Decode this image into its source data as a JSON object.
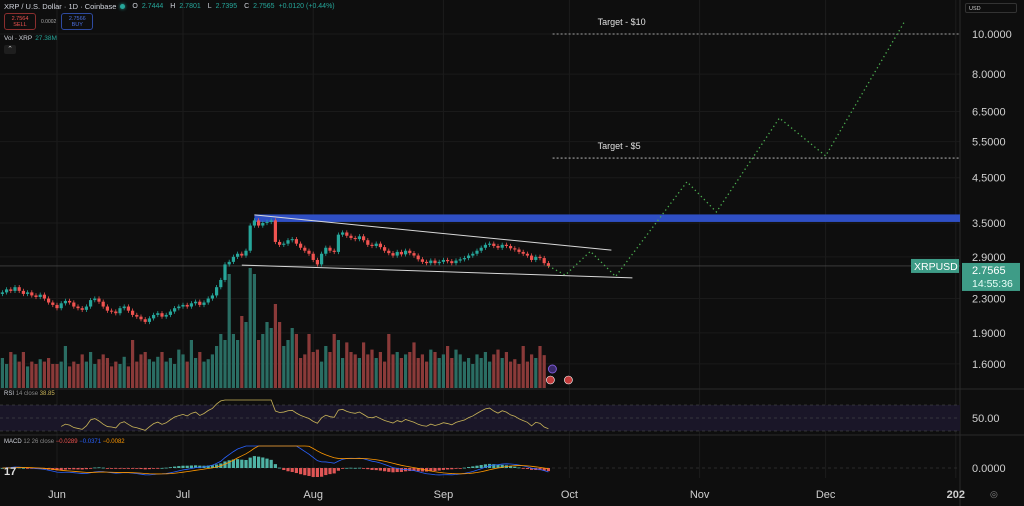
{
  "header": {
    "title": "XRP / U.S. Dollar · 1D · Coinbase",
    "ohlc": {
      "o_label": "O",
      "o": "2.7444",
      "h_label": "H",
      "h": "2.7801",
      "l_label": "L",
      "l": "2.7395",
      "c_label": "C",
      "c": "2.7565",
      "change": "+0.0120 (+0.44%)"
    },
    "sell_price": "2.7564",
    "sell_label": "SELL",
    "spread": "0.0002",
    "buy_price": "2.7566",
    "buy_label": "BUY",
    "volume_label": "Vol · XRP",
    "volume_value": "27.38M",
    "collapse_icon": "chevron-up-icon"
  },
  "currency_select": "USD",
  "colors": {
    "up": "#26a69a",
    "down": "#ef5350",
    "zone": "#2f4fc4",
    "projection": "#4caf50",
    "background": "#0e0e0e",
    "rsi": "#c9b458",
    "macd": "#2962ff",
    "signal": "#ff9800"
  },
  "chart_data": {
    "type": "candlestick",
    "symbol": "XRPUSD",
    "scale": "log",
    "start_date": "2025-05-19",
    "closes": [
      2.38,
      2.42,
      2.4,
      2.45,
      2.4,
      2.36,
      2.38,
      2.34,
      2.32,
      2.35,
      2.3,
      2.25,
      2.22,
      2.18,
      2.24,
      2.27,
      2.25,
      2.2,
      2.18,
      2.16,
      2.2,
      2.28,
      2.3,
      2.26,
      2.2,
      2.15,
      2.14,
      2.12,
      2.18,
      2.2,
      2.15,
      2.1,
      2.08,
      2.05,
      2.02,
      2.06,
      2.1,
      2.12,
      2.08,
      2.1,
      2.14,
      2.18,
      2.2,
      2.22,
      2.2,
      2.24,
      2.26,
      2.22,
      2.25,
      2.3,
      2.34,
      2.45,
      2.55,
      2.78,
      2.82,
      2.9,
      2.95,
      2.92,
      3.0,
      3.45,
      3.55,
      3.45,
      3.5,
      3.52,
      3.55,
      3.15,
      3.1,
      3.12,
      3.18,
      3.2,
      3.12,
      3.05,
      3.0,
      2.95,
      2.85,
      2.78,
      2.95,
      3.05,
      3.0,
      2.98,
      3.28,
      3.32,
      3.26,
      3.22,
      3.2,
      3.25,
      3.18,
      3.1,
      3.08,
      3.12,
      3.06,
      3.0,
      2.96,
      2.92,
      2.98,
      2.94,
      3.0,
      2.96,
      2.92,
      2.86,
      2.82,
      2.8,
      2.84,
      2.8,
      2.82,
      2.85,
      2.83,
      2.8,
      2.84,
      2.86,
      2.88,
      2.92,
      2.95,
      3.0,
      3.05,
      3.1,
      3.12,
      3.08,
      3.05,
      3.1,
      3.08,
      3.04,
      3.02,
      2.98,
      2.95,
      2.92,
      2.85,
      2.9,
      2.88,
      2.8,
      2.7565
    ],
    "volumes_m": [
      25,
      20,
      30,
      28,
      22,
      30,
      18,
      22,
      20,
      24,
      22,
      25,
      20,
      20,
      22,
      35,
      18,
      22,
      20,
      28,
      22,
      30,
      20,
      24,
      28,
      25,
      18,
      22,
      20,
      26,
      18,
      40,
      22,
      28,
      30,
      24,
      22,
      26,
      30,
      22,
      25,
      20,
      32,
      28,
      22,
      40,
      25,
      30,
      22,
      24,
      28,
      35,
      45,
      40,
      95,
      45,
      40,
      60,
      55,
      100,
      95,
      40,
      45,
      55,
      50,
      70,
      55,
      35,
      40,
      50,
      45,
      25,
      28,
      45,
      30,
      32,
      22,
      35,
      30,
      45,
      40,
      25,
      38,
      30,
      28,
      25,
      38,
      28,
      32,
      25,
      30,
      22,
      45,
      28,
      30,
      25,
      28,
      30,
      38,
      25,
      28,
      22,
      32,
      30,
      25,
      28,
      35,
      25,
      32,
      28,
      22,
      25,
      20,
      28,
      25,
      30,
      22,
      28,
      32,
      25,
      30,
      22,
      24,
      20,
      35,
      22,
      28,
      25,
      35,
      27.38
    ],
    "price_ticks": [
      "10.0000",
      "8.0000",
      "6.5000",
      "5.5000",
      "4.5000",
      "3.5000",
      "2.9000",
      "2.3000",
      "1.9000",
      "1.6000"
    ],
    "time_ticks": [
      {
        "label": "Jun",
        "date": "2025-06-01"
      },
      {
        "label": "Jul",
        "date": "2025-07-01"
      },
      {
        "label": "Aug",
        "date": "2025-08-01"
      },
      {
        "label": "Sep",
        "date": "2025-09-01"
      },
      {
        "label": "Oct",
        "date": "2025-10-01"
      },
      {
        "label": "Nov",
        "date": "2025-11-01"
      },
      {
        "label": "Dec",
        "date": "2025-12-01"
      },
      {
        "label": "202",
        "date": "2026-01-01"
      }
    ],
    "last_price": {
      "symbol": "XRPUSD",
      "price": "2.7565",
      "countdown": "14:55:36"
    },
    "resistance_zone": {
      "from_date": "2025-07-18",
      "low": 3.52,
      "high": 3.67
    },
    "trendlines": [
      {
        "name": "upper",
        "points": [
          [
            "2025-07-18",
            3.66
          ],
          [
            "2025-10-11",
            3.01
          ]
        ]
      },
      {
        "name": "lower",
        "points": [
          [
            "2025-07-15",
            2.77
          ],
          [
            "2025-10-16",
            2.58
          ]
        ]
      }
    ],
    "targets": [
      {
        "label": "Target - $10",
        "price": 10.0,
        "from_date": "2025-09-27"
      },
      {
        "label": "Target - $5",
        "price": 5.02,
        "from_date": "2025-09-27"
      }
    ],
    "projection": [
      [
        "2025-09-26",
        2.7565
      ],
      [
        "2025-09-30",
        2.62
      ],
      [
        "2025-10-06",
        2.99
      ],
      [
        "2025-10-12",
        2.6
      ],
      [
        "2025-10-29",
        4.4
      ],
      [
        "2025-11-05",
        3.72
      ],
      [
        "2025-11-20",
        6.27
      ],
      [
        "2025-12-01",
        5.08
      ],
      [
        "2025-12-20",
        10.8
      ]
    ],
    "rsi": {
      "label": "RSI",
      "params": "14 close",
      "value": "38.85",
      "tick": "50.00",
      "bands": [
        30,
        50,
        70
      ]
    },
    "macd": {
      "label": "MACD",
      "params": "12 26 close",
      "hist": "−0.0289",
      "macd": "−0.0371",
      "signal": "−0.0082",
      "tick": "0.0000"
    }
  }
}
